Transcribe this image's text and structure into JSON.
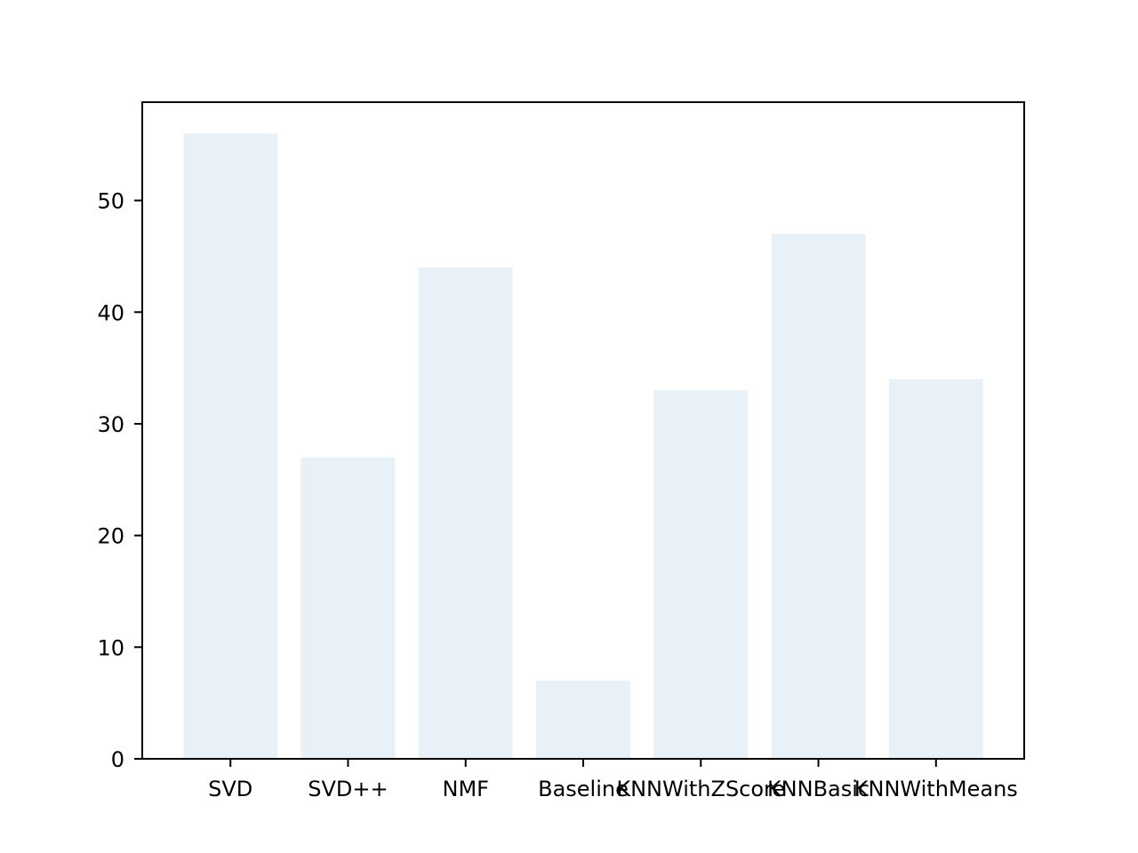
{
  "chart_data": {
    "type": "bar",
    "categories": [
      "SVD",
      "SVD++",
      "NMF",
      "Baseline",
      "KNNWithZScore",
      "KNNBasic",
      "KNNWithMeans"
    ],
    "values": [
      56,
      27,
      44,
      7,
      33,
      47,
      34
    ],
    "title": "",
    "xlabel": "",
    "ylabel": "",
    "ylim": [
      0,
      58.8
    ],
    "yticks": [
      0,
      10,
      20,
      30,
      40,
      50
    ],
    "grid": false,
    "legend": "none",
    "bar_color": "#e8f0f8"
  }
}
